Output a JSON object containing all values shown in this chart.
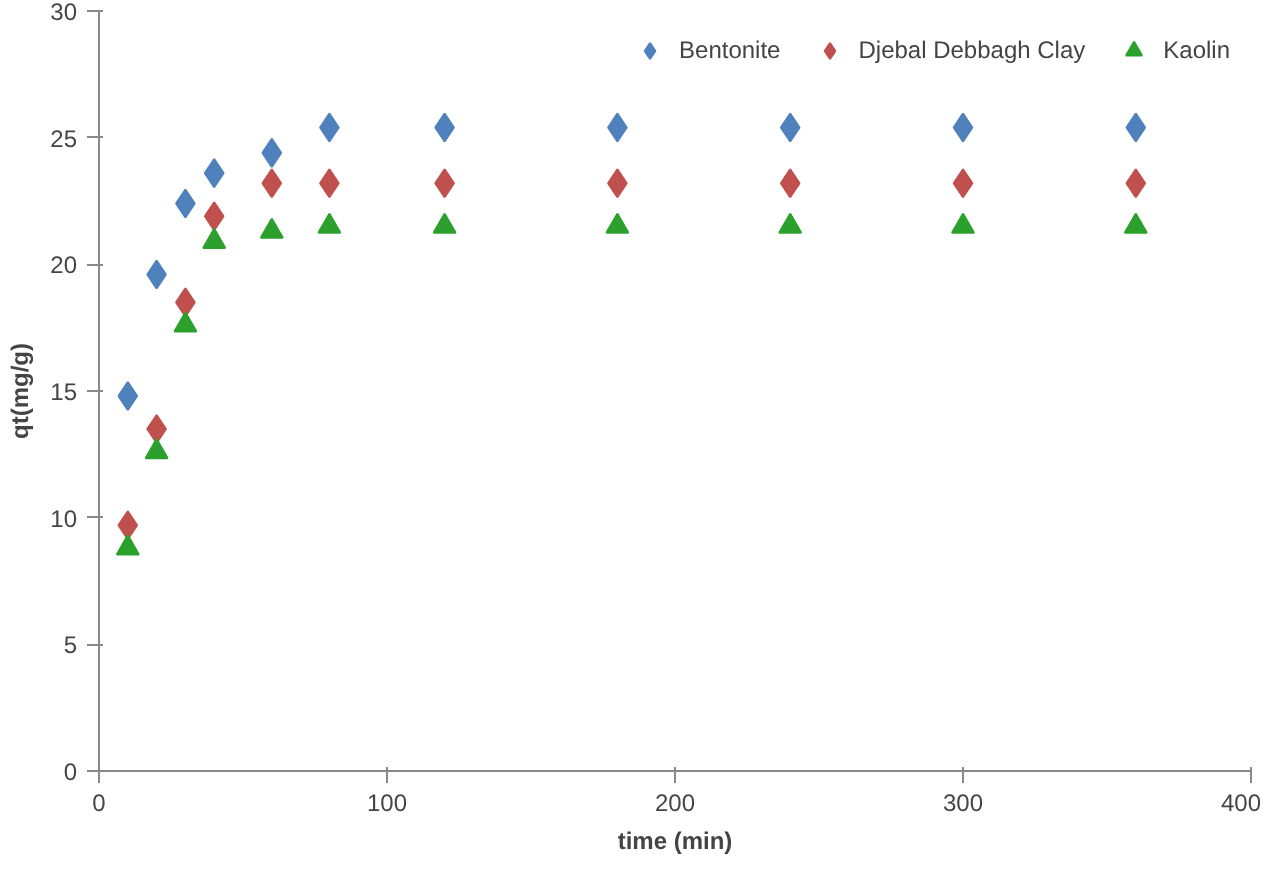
{
  "chart_data": {
    "type": "scatter",
    "xlabel": "time (min)",
    "ylabel": "qt(mg/g)",
    "x": [
      10,
      20,
      30,
      40,
      60,
      80,
      120,
      180,
      240,
      300,
      360
    ],
    "xlim": [
      0,
      400
    ],
    "xticks": [
      0,
      100,
      200,
      300,
      400
    ],
    "ylim": [
      0,
      30
    ],
    "yticks": [
      0,
      5,
      10,
      15,
      20,
      25,
      30
    ],
    "grid": false,
    "legend": "top",
    "series": [
      {
        "name": "Bentonite",
        "color": "#4f81bd",
        "marker": "diamond",
        "values": [
          14.8,
          19.6,
          22.4,
          23.6,
          24.4,
          25.4,
          25.4,
          25.4,
          25.4,
          25.4,
          25.4
        ]
      },
      {
        "name": "Djebal Debbagh Clay",
        "color": "#c0504d",
        "marker": "diamond",
        "values": [
          9.7,
          13.5,
          18.5,
          21.9,
          23.2,
          23.2,
          23.2,
          23.2,
          23.2,
          23.2,
          23.2
        ]
      },
      {
        "name": "Kaolin",
        "color": "#2ca02c",
        "marker": "triangle",
        "values": [
          8.8,
          12.6,
          17.6,
          20.9,
          21.3,
          21.5,
          21.5,
          21.5,
          21.5,
          21.5,
          21.5
        ]
      }
    ]
  }
}
